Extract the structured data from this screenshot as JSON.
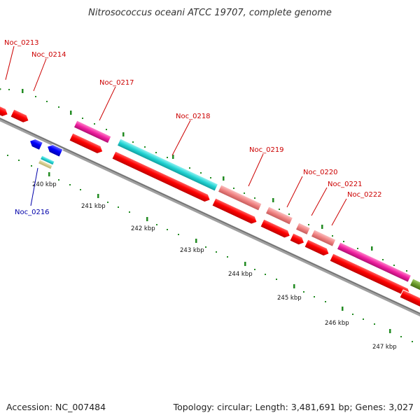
{
  "title": "Nitrosococcus oceani ATCC 19707, complete genome",
  "footer": {
    "accession": "Accession: NC_007484",
    "summary": "Topology: circular; Length: 3,481,691 bp; Genes: 3,027"
  },
  "colors": {
    "forward_cds": "#ff0000",
    "reverse_cds": "#0000ff",
    "gene_label_forward": "#cc0000",
    "gene_label_reverse": "#0000aa",
    "tick": "#228b22",
    "backbone": "#888888",
    "cyan_feature": "#22d3d3",
    "magenta_feature": "#f01ea0",
    "salmon_feature": "#f08282",
    "olive_feature": "#6b9b2a",
    "khaki_feature": "#d8cf8a"
  },
  "gene_labels": [
    {
      "name": "Noc_0213",
      "strand": "forward"
    },
    {
      "name": "Noc_0214",
      "strand": "forward"
    },
    {
      "name": "Noc_0217",
      "strand": "forward"
    },
    {
      "name": "Noc_0218",
      "strand": "forward"
    },
    {
      "name": "Noc_0219",
      "strand": "forward"
    },
    {
      "name": "Noc_0220",
      "strand": "forward"
    },
    {
      "name": "Noc_0221",
      "strand": "forward"
    },
    {
      "name": "Noc_0222",
      "strand": "forward"
    },
    {
      "name": "Noc_0216",
      "strand": "reverse"
    }
  ],
  "scale_ticks": [
    "240 kbp",
    "241 kbp",
    "242 kbp",
    "243 kbp",
    "244 kbp",
    "245 kbp",
    "246 kbp",
    "247 kbp"
  ]
}
